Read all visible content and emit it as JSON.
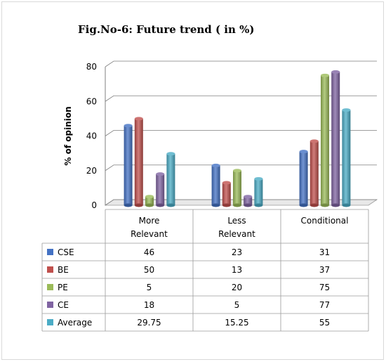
{
  "title": "Fig.No-6: Future trend ( in %)",
  "chart_data": {
    "type": "bar",
    "title": "Fig.No-6: Future trend ( in %)",
    "xlabel": "",
    "ylabel": "% of opinion",
    "ylim": [
      0,
      80
    ],
    "yticks": [
      "0",
      "20",
      "40",
      "60",
      "80"
    ],
    "categories": [
      [
        "More",
        "Relevant"
      ],
      [
        "Less",
        "Relevant"
      ],
      [
        "Conditional"
      ]
    ],
    "legend_position": "data-table",
    "grid": true,
    "series": [
      {
        "name": "CSE",
        "color": "#4472c4",
        "values": [
          46,
          23,
          31
        ],
        "labels": [
          "46",
          "23",
          "31"
        ]
      },
      {
        "name": "BE",
        "color": "#c0504d",
        "values": [
          50,
          13,
          37
        ],
        "labels": [
          "50",
          "13",
          "37"
        ]
      },
      {
        "name": "PE",
        "color": "#9bbb59",
        "values": [
          5,
          20,
          75
        ],
        "labels": [
          "5",
          "20",
          "75"
        ]
      },
      {
        "name": "CE",
        "color": "#8064a2",
        "values": [
          18,
          5,
          77
        ],
        "labels": [
          "18",
          "5",
          "77"
        ]
      },
      {
        "name": "Average",
        "color": "#4bacc6",
        "values": [
          29.75,
          15.25,
          55
        ],
        "labels": [
          "29.75",
          "15.25",
          "55"
        ]
      }
    ]
  }
}
